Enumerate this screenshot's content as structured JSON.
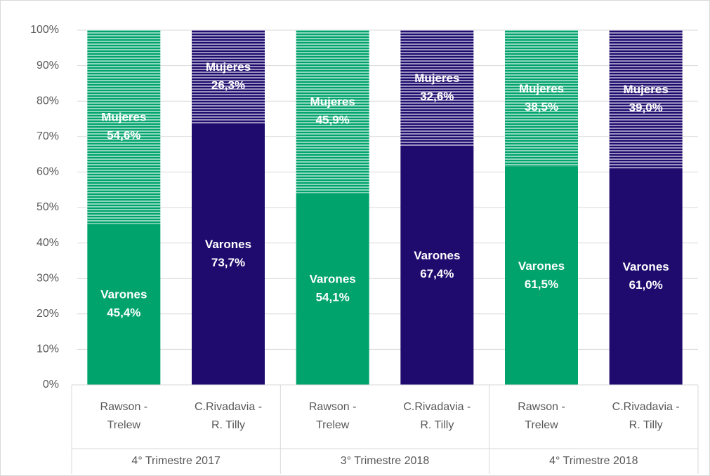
{
  "chart_data": {
    "type": "stacked_bar_100",
    "categories": [
      "Rawson - Trelew",
      "C.Rivadavia - R. Tilly",
      "Rawson - Trelew",
      "C.Rivadavia - R. Tilly",
      "Rawson - Trelew",
      "C.Rivadavia - R. Tilly"
    ],
    "groups": [
      "4° Trimestre 2017",
      "3° Trimestre 2018",
      "4° Trimestre 2018"
    ],
    "bar_colors": [
      "#00a36c",
      "#1f0a6e",
      "#00a36c",
      "#1f0a6e",
      "#00a36c",
      "#1f0a6e"
    ],
    "series": [
      {
        "name": "Varones",
        "values": [
          45.4,
          73.7,
          54.1,
          67.4,
          61.5,
          61.0
        ],
        "value_labels": [
          "45,4%",
          "73,7%",
          "54,1%",
          "67,4%",
          "61,5%",
          "61,0%"
        ],
        "pattern": "solid"
      },
      {
        "name": "Mujeres",
        "values": [
          54.6,
          26.3,
          45.9,
          32.6,
          38.5,
          39.0
        ],
        "value_labels": [
          "54,6%",
          "26,3%",
          "45,9%",
          "32,6%",
          "38,5%",
          "39,0%"
        ],
        "pattern": "horizontal-stripes"
      }
    ],
    "ylim": [
      0,
      100
    ],
    "yticks": [
      {
        "value": 0,
        "label": "0%"
      },
      {
        "value": 10,
        "label": "10%"
      },
      {
        "value": 20,
        "label": "20%"
      },
      {
        "value": 30,
        "label": "30%"
      },
      {
        "value": 40,
        "label": "40%"
      },
      {
        "value": 50,
        "label": "50%"
      },
      {
        "value": 60,
        "label": "60%"
      },
      {
        "value": 70,
        "label": "70%"
      },
      {
        "value": 80,
        "label": "80%"
      },
      {
        "value": 90,
        "label": "90%"
      },
      {
        "value": 100,
        "label": "100%"
      }
    ],
    "grid": true
  }
}
